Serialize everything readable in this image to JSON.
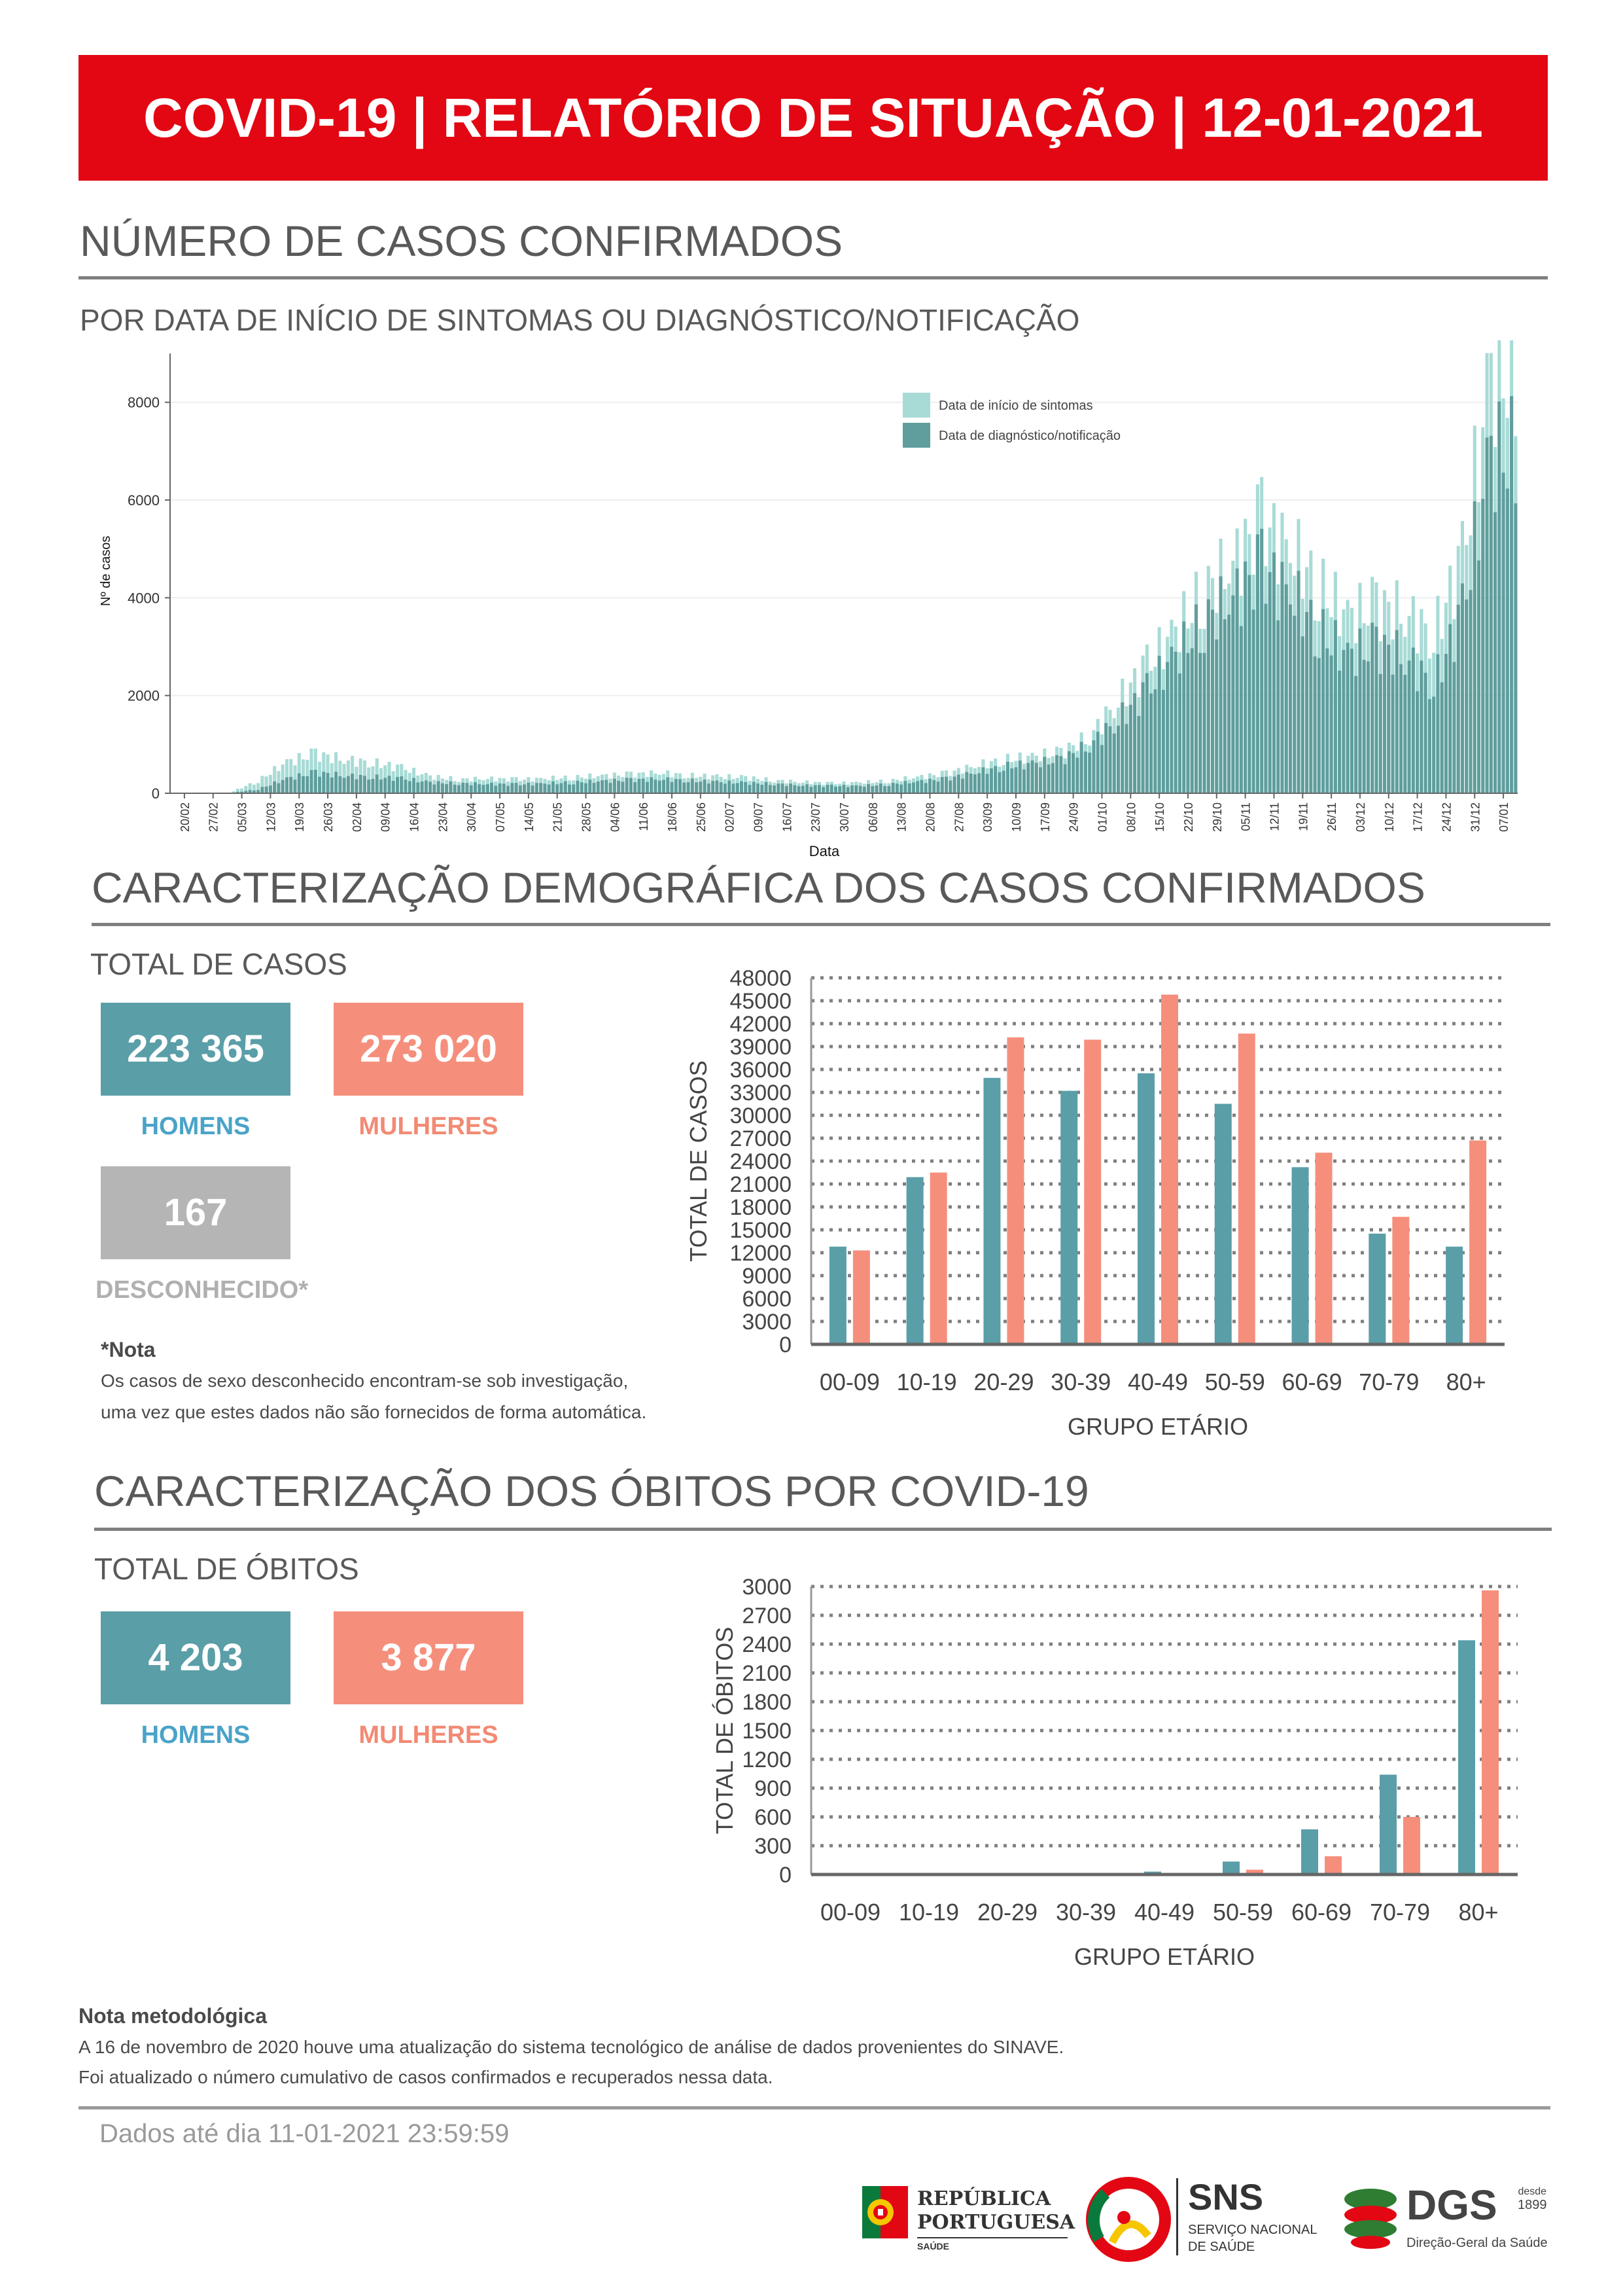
{
  "header": {
    "title": "COVID-19 | RELATÓRIO DE SITUAÇÃO | 12-01-2021"
  },
  "section_cases": {
    "title": "NÚMERO DE CASOS CONFIRMADOS",
    "subtitle": "POR DATA DE INÍCIO DE SINTOMAS OU DIAGNÓSTICO/NOTIFICAÇÃO"
  },
  "section_demo": {
    "title": "CARACTERIZAÇÃO DEMOGRÁFICA DOS CASOS CONFIRMADOS",
    "total_label": "TOTAL DE CASOS",
    "men_value": "223 365",
    "women_value": "273 020",
    "unknown_value": "167",
    "men_label": "HOMENS",
    "women_label": "MULHERES",
    "unknown_label": "DESCONHECIDO*",
    "note_title": "*Nota",
    "note_line1": "Os casos de sexo desconhecido encontram-se sob investigação,",
    "note_line2": "uma vez que estes dados não são fornecidos de forma automática."
  },
  "section_deaths": {
    "title": "CARACTERIZAÇÃO DOS ÓBITOS POR COVID-19",
    "total_label": "TOTAL DE ÓBITOS",
    "men_value": "4 203",
    "women_value": "3 877",
    "men_label": "HOMENS",
    "women_label": "MULHERES"
  },
  "methodology": {
    "title": "Nota metodológica",
    "line1": "A 16 de novembro de 2020 houve uma atualização do sistema tecnológico de análise de dados provenientes do SINAVE.",
    "line2": "Foi atualizado o número cumulativo de casos confirmados e recuperados nessa data."
  },
  "footer": {
    "data_until": "Dados até dia 11-01-2021 23:59:59",
    "logo_republica_line1": "REPÚBLICA",
    "logo_republica_line2": "PORTUGUESA",
    "logo_republica_line3": "SAÚDE",
    "logo_sns": "SNS",
    "logo_sns_line1": "SERVIÇO NACIONAL",
    "logo_sns_line2": "DE SAÚDE",
    "logo_dgs": "DGS",
    "logo_dgs_since": "desde",
    "logo_dgs_year": "1899",
    "logo_dgs_sub": "Direção-Geral da Saúde"
  },
  "colors": {
    "banner": "#e30613",
    "men": "#5a9ea8",
    "women": "#f58f7c",
    "unknown": "#b5b5b5",
    "symptom_onset": "#a8dbd6",
    "diagnosis": "#5f9e9d"
  },
  "chart_data": [
    {
      "type": "bar",
      "ylabel": "Nº de casos",
      "xlabel": "Data",
      "ylim": [
        0,
        9000
      ],
      "yticks": [
        0,
        2000,
        4000,
        6000,
        8000
      ],
      "legend_position": "top-right",
      "x_tick_labels": [
        "20/02",
        "27/02",
        "05/03",
        "12/03",
        "19/03",
        "26/03",
        "02/04",
        "09/04",
        "16/04",
        "23/04",
        "30/04",
        "07/05",
        "14/05",
        "21/05",
        "28/05",
        "04/06",
        "11/06",
        "18/06",
        "25/06",
        "02/07",
        "09/07",
        "16/07",
        "23/07",
        "30/07",
        "06/08",
        "13/08",
        "20/08",
        "27/08",
        "03/09",
        "10/09",
        "17/09",
        "24/09",
        "01/10",
        "08/10",
        "15/10",
        "22/10",
        "29/10",
        "05/11",
        "12/11",
        "19/11",
        "26/11",
        "03/12",
        "10/12",
        "17/12",
        "24/12",
        "31/12",
        "07/01"
      ],
      "weekly_x": [
        "20/02",
        "27/02",
        "05/03",
        "12/03",
        "19/03",
        "26/03",
        "02/04",
        "09/04",
        "16/04",
        "23/04",
        "30/04",
        "07/05",
        "14/05",
        "21/05",
        "28/05",
        "04/06",
        "11/06",
        "18/06",
        "25/06",
        "02/07",
        "09/07",
        "16/07",
        "23/07",
        "30/07",
        "06/08",
        "13/08",
        "20/08",
        "27/08",
        "03/09",
        "10/09",
        "17/09",
        "24/09",
        "01/10",
        "08/10",
        "15/10",
        "22/10",
        "29/10",
        "05/11",
        "12/11",
        "19/11",
        "26/11",
        "03/12",
        "10/12",
        "17/12",
        "24/12",
        "31/12",
        "07/01"
      ],
      "series": [
        {
          "name": "Data de início de sintomas",
          "values": [
            0,
            0,
            10,
            250,
            640,
            800,
            690,
            620,
            520,
            340,
            280,
            300,
            280,
            300,
            320,
            360,
            380,
            420,
            360,
            340,
            320,
            260,
            230,
            200,
            220,
            250,
            330,
            400,
            560,
            680,
            740,
            830,
            1150,
            1900,
            2600,
            3300,
            4100,
            4700,
            5500,
            5000,
            4200,
            3600,
            3800,
            3700,
            3200,
            4800,
            8500
          ]
        },
        {
          "name": "Data de diagnóstico/notificação",
          "values": [
            0,
            0,
            5,
            80,
            300,
            420,
            360,
            330,
            300,
            220,
            200,
            190,
            180,
            200,
            220,
            250,
            270,
            290,
            260,
            230,
            210,
            190,
            160,
            150,
            150,
            180,
            240,
            290,
            420,
            540,
            600,
            680,
            980,
            1500,
            2100,
            2800,
            3500,
            4000,
            4600,
            4100,
            3300,
            2800,
            3000,
            2800,
            2200,
            3700,
            6900
          ]
        }
      ]
    },
    {
      "type": "bar",
      "xlabel": "GRUPO ETÁRIO",
      "ylabel": "TOTAL DE CASOS",
      "ylim": [
        0,
        48000
      ],
      "yticks": [
        0,
        3000,
        6000,
        9000,
        12000,
        15000,
        18000,
        21000,
        24000,
        27000,
        30000,
        33000,
        36000,
        39000,
        42000,
        45000,
        48000
      ],
      "categories": [
        "00-09",
        "10-19",
        "20-29",
        "30-39",
        "40-49",
        "50-59",
        "60-69",
        "70-79",
        "80+"
      ],
      "series": [
        {
          "name": "HOMENS",
          "values": [
            12800,
            21900,
            34900,
            33200,
            35500,
            31500,
            23200,
            14500,
            12800
          ]
        },
        {
          "name": "MULHERES",
          "values": [
            12300,
            22500,
            40200,
            39900,
            45800,
            40700,
            25100,
            16700,
            26700
          ]
        }
      ]
    },
    {
      "type": "bar",
      "xlabel": "GRUPO ETÁRIO",
      "ylabel": "TOTAL DE ÓBITOS",
      "ylim": [
        0,
        3000
      ],
      "yticks": [
        0,
        300,
        600,
        900,
        1200,
        1500,
        1800,
        2100,
        2400,
        2700,
        3000
      ],
      "categories": [
        "00-09",
        "10-19",
        "20-29",
        "30-39",
        "40-49",
        "50-59",
        "60-69",
        "70-79",
        "80+"
      ],
      "series": [
        {
          "name": "HOMENS",
          "values": [
            0,
            0,
            1,
            3,
            30,
            135,
            470,
            1040,
            2440
          ]
        },
        {
          "name": "MULHERES",
          "values": [
            0,
            0,
            1,
            2,
            10,
            50,
            190,
            600,
            2960
          ]
        }
      ]
    }
  ]
}
